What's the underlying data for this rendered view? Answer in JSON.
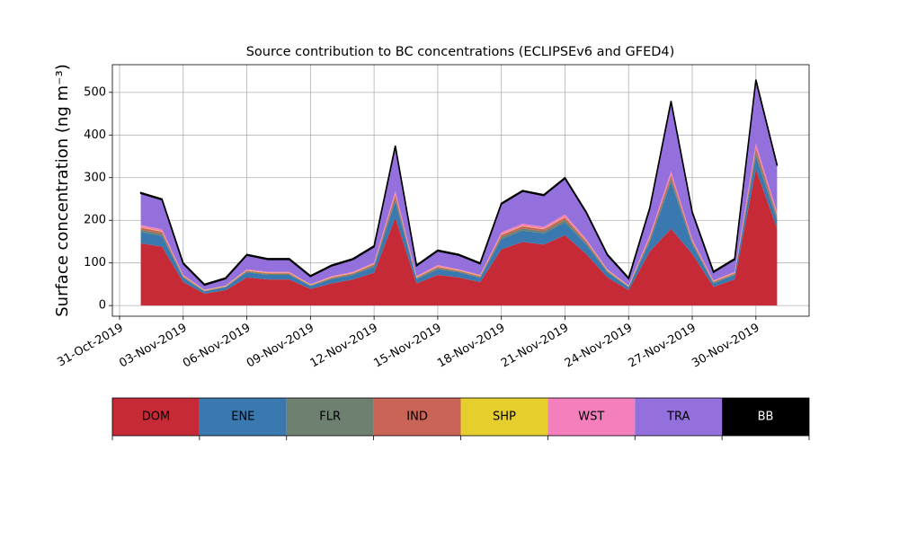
{
  "chart_data": {
    "type": "stacked-area",
    "title": "Source contribution to BC concentrations (ECLIPSEv6 and GFED4)",
    "y_label": "Surface concentration (ng m⁻³)",
    "x": [
      "2019-11-01",
      "2019-11-02",
      "2019-11-03",
      "2019-11-04",
      "2019-11-05",
      "2019-11-06",
      "2019-11-07",
      "2019-11-08",
      "2019-11-09",
      "2019-11-10",
      "2019-11-11",
      "2019-11-12",
      "2019-11-13",
      "2019-11-14",
      "2019-11-15",
      "2019-11-16",
      "2019-11-17",
      "2019-11-18",
      "2019-11-19",
      "2019-11-20",
      "2019-11-21",
      "2019-11-22",
      "2019-11-23",
      "2019-11-24",
      "2019-11-25",
      "2019-11-26",
      "2019-11-27",
      "2019-11-28",
      "2019-11-29",
      "2019-11-30",
      "2019-12-01"
    ],
    "xlim": [
      "2019-10-31",
      "2019-12-02"
    ],
    "xticks": [
      {
        "value": "2019-10-31",
        "label": "31-Oct-2019"
      },
      {
        "value": "2019-11-03",
        "label": "03-Nov-2019"
      },
      {
        "value": "2019-11-06",
        "label": "06-Nov-2019"
      },
      {
        "value": "2019-11-09",
        "label": "09-Nov-2019"
      },
      {
        "value": "2019-11-12",
        "label": "12-Nov-2019"
      },
      {
        "value": "2019-11-15",
        "label": "15-Nov-2019"
      },
      {
        "value": "2019-11-18",
        "label": "18-Nov-2019"
      },
      {
        "value": "2019-11-21",
        "label": "21-Nov-2019"
      },
      {
        "value": "2019-11-24",
        "label": "24-Nov-2019"
      },
      {
        "value": "2019-11-27",
        "label": "27-Nov-2019"
      },
      {
        "value": "2019-11-30",
        "label": "30-Nov-2019"
      }
    ],
    "ylim": [
      -25,
      565
    ],
    "yticks": [
      0,
      100,
      200,
      300,
      400,
      500
    ],
    "grid": true,
    "legend": "bottom",
    "series": [
      {
        "name": "DOM",
        "color": "#c62a36",
        "values": [
          146,
          138,
          55,
          28,
          36,
          66,
          61,
          61,
          39,
          52,
          61,
          77,
          206,
          52,
          72,
          66,
          55,
          132,
          149,
          143,
          165,
          121,
          66,
          36,
          127,
          180,
          121,
          44,
          61,
          320,
          180
        ]
      },
      {
        "name": "ENE",
        "color": "#3a78b0",
        "values": [
          27,
          25,
          10,
          5,
          7,
          12,
          11,
          11,
          7,
          10,
          11,
          14,
          38,
          10,
          13,
          12,
          10,
          24,
          27,
          26,
          30,
          22,
          12,
          7,
          23,
          110,
          22,
          8,
          11,
          30,
          20
        ]
      },
      {
        "name": "FLR",
        "color": "#6e8070",
        "values": [
          5,
          5,
          2,
          1,
          1,
          2,
          2,
          2,
          1,
          2,
          2,
          3,
          8,
          2,
          3,
          2,
          2,
          5,
          5,
          5,
          6,
          4,
          2,
          1,
          5,
          8,
          4,
          2,
          2,
          10,
          6
        ]
      },
      {
        "name": "IND",
        "color": "#c96456",
        "values": [
          5,
          5,
          2,
          1,
          1,
          2,
          2,
          2,
          1,
          2,
          2,
          3,
          8,
          2,
          3,
          2,
          2,
          5,
          5,
          5,
          6,
          4,
          2,
          1,
          5,
          8,
          4,
          2,
          2,
          10,
          6
        ]
      },
      {
        "name": "SHP",
        "color": "#e6cf2d",
        "values": [
          1,
          1,
          1,
          1,
          1,
          1,
          1,
          1,
          1,
          1,
          1,
          1,
          1,
          1,
          1,
          1,
          1,
          1,
          1,
          1,
          1,
          1,
          1,
          1,
          1,
          1,
          1,
          1,
          1,
          1,
          1
        ]
      },
      {
        "name": "WST",
        "color": "#f47fbd",
        "values": [
          5,
          5,
          2,
          1,
          1,
          2,
          2,
          2,
          1,
          2,
          2,
          3,
          8,
          2,
          3,
          2,
          2,
          5,
          5,
          5,
          6,
          4,
          2,
          1,
          5,
          8,
          4,
          2,
          2,
          10,
          6
        ]
      },
      {
        "name": "TRA",
        "color": "#9370db",
        "values": [
          74,
          69,
          26,
          11,
          16,
          33,
          29,
          29,
          18,
          24,
          29,
          37,
          104,
          24,
          33,
          33,
          26,
          66,
          76,
          73,
          84,
          62,
          33,
          16,
          62,
          163,
          62,
          19,
          29,
          147,
          109
        ]
      },
      {
        "name": "BB",
        "color": "#000000",
        "values": [
          2,
          2,
          2,
          2,
          2,
          2,
          2,
          2,
          2,
          2,
          2,
          2,
          2,
          2,
          2,
          2,
          2,
          2,
          2,
          2,
          2,
          2,
          2,
          2,
          2,
          2,
          2,
          2,
          2,
          2,
          2
        ]
      }
    ]
  }
}
